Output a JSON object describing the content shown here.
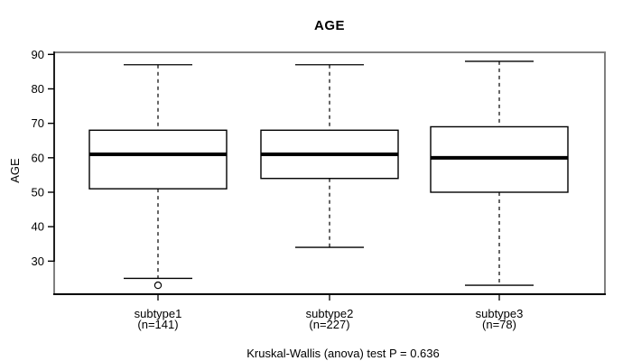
{
  "figure": {
    "title": "AGE",
    "y_axis_label": "AGE",
    "footer": "Kruskal-Wallis (anova) test P = 0.636"
  },
  "chart_data": {
    "type": "boxplot",
    "title": "AGE",
    "ylabel": "AGE",
    "xlabel": "",
    "annotation": "Kruskal-Wallis (anova) test P = 0.636",
    "grid": false,
    "ylim": [
      20.4,
      90.6
    ],
    "yticks": [
      30,
      40,
      50,
      60,
      70,
      80,
      90
    ],
    "categories": [
      "subtype1",
      "subtype2",
      "subtype3"
    ],
    "category_counts": [
      "(n=141)",
      "(n=227)",
      "(n=78)"
    ],
    "series": [
      {
        "name": "subtype1",
        "n": 141,
        "whisker_low": 25,
        "q1": 51,
        "median": 61,
        "q3": 68,
        "whisker_high": 87,
        "outliers": [
          23
        ]
      },
      {
        "name": "subtype2",
        "n": 227,
        "whisker_low": 34,
        "q1": 54,
        "median": 61,
        "q3": 68,
        "whisker_high": 87,
        "outliers": []
      },
      {
        "name": "subtype3",
        "n": 78,
        "whisker_low": 23,
        "q1": 50,
        "median": 60,
        "q3": 69,
        "whisker_high": 88,
        "outliers": []
      }
    ],
    "colors": {
      "line": "#000000",
      "frame": "#808080",
      "background": "#ffffff",
      "box_fill": "#ffffff"
    }
  }
}
